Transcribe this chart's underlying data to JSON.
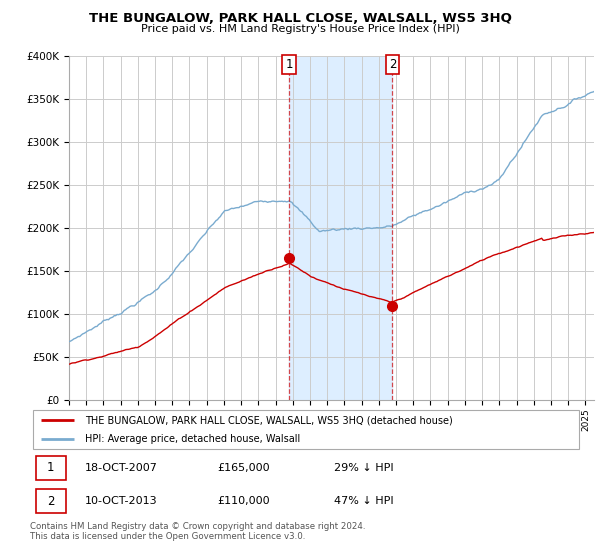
{
  "title": "THE BUNGALOW, PARK HALL CLOSE, WALSALL, WS5 3HQ",
  "subtitle": "Price paid vs. HM Land Registry's House Price Index (HPI)",
  "footer": "Contains HM Land Registry data © Crown copyright and database right 2024.\nThis data is licensed under the Open Government Licence v3.0.",
  "legend_red": "THE BUNGALOW, PARK HALL CLOSE, WALSALL, WS5 3HQ (detached house)",
  "legend_blue": "HPI: Average price, detached house, Walsall",
  "transactions": [
    {
      "label": "1",
      "date": "18-OCT-2007",
      "price": 165000,
      "pct": "29%",
      "dir": "↓",
      "year_f": 2007.79
    },
    {
      "label": "2",
      "date": "10-OCT-2013",
      "price": 110000,
      "pct": "47%",
      "dir": "↓",
      "year_f": 2013.79
    }
  ],
  "ylim": [
    0,
    400000
  ],
  "xlim_start": 1995.0,
  "xlim_end": 2025.5,
  "red_color": "#cc0000",
  "blue_color": "#7aabcf",
  "shade_color": "#ddeeff",
  "grid_color": "#cccccc",
  "title_fontsize": 9.5,
  "subtitle_fontsize": 8
}
